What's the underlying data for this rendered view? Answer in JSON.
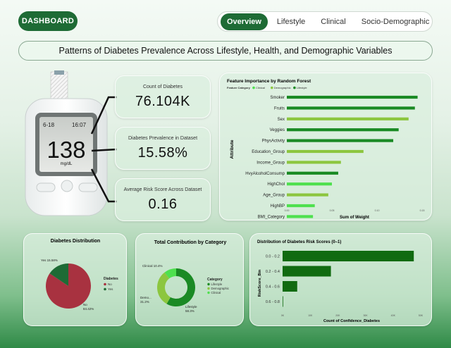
{
  "header": {
    "dashboard_label": "DASHBOARD",
    "tabs": [
      "Overview",
      "Lifestyle",
      "Clinical",
      "Socio-Demographic"
    ],
    "active_tab": "Overview"
  },
  "title": "Patterns of Diabetes Prevalence Across Lifestyle, Health, and  Demographic Variables",
  "meter": {
    "date": "6-18",
    "time": "16:07",
    "reading": "138",
    "unit": "mg/dL"
  },
  "kpis": [
    {
      "label": "Count of Diabetes",
      "value": "76.104K"
    },
    {
      "label": "Diabetes Prevalence in Dataset",
      "value": "15.58%"
    },
    {
      "label": "Average Risk Score Across Dataset",
      "value": "0.16"
    }
  ],
  "colors": {
    "accent": "#1e6b35",
    "lifestyle": "#1a8a24",
    "demographic": "#8cc63f",
    "clinical": "#4ee04e",
    "no": "#a83240",
    "yes": "#1e6b35"
  },
  "chart_data": [
    {
      "type": "bar",
      "orientation": "horizontal",
      "title": "Feature Importance by Random Forest",
      "legend_title": "Feature Category",
      "legend": [
        "Clinical",
        "Demographic",
        "Lifestyle"
      ],
      "legend_colors": [
        "#4ee04e",
        "#8cc63f",
        "#1a8a24"
      ],
      "ylabel": "Attribute",
      "xlabel": "Sum of Weight",
      "xticks": [
        "0.00",
        "0.05",
        "0.10",
        "0.15"
      ],
      "xlim": [
        0,
        0.15
      ],
      "categories": [
        "Smoker",
        "Fruits",
        "Sex",
        "Veggies",
        "PhysActivity",
        "Education_Group",
        "Income_Group",
        "HvyAlcoholConsump",
        "HighChol",
        "Age_Group",
        "HighBP",
        "BMI_Category"
      ],
      "values": [
        0.145,
        0.142,
        0.135,
        0.124,
        0.118,
        0.085,
        0.06,
        0.057,
        0.05,
        0.046,
        0.031,
        0.029
      ],
      "category_types": [
        "Lifestyle",
        "Lifestyle",
        "Demographic",
        "Lifestyle",
        "Lifestyle",
        "Demographic",
        "Demographic",
        "Lifestyle",
        "Clinical",
        "Demographic",
        "Clinical",
        "Clinical"
      ]
    },
    {
      "type": "pie",
      "title": "Diabetes Distribution",
      "legend_title": "Diabetes",
      "labels": [
        "No",
        "Yes"
      ],
      "values": [
        84.42,
        15.58
      ],
      "data_labels": [
        "No\n84.42%",
        "Yes 15.58%"
      ],
      "colors": [
        "#a83240",
        "#1e6b35"
      ]
    },
    {
      "type": "pie",
      "donut": true,
      "title": "Total Contribution by Category",
      "legend_title": "Category",
      "labels": [
        "Lifestyle",
        "Demographic",
        "Clinical"
      ],
      "values": [
        58.3,
        31.2,
        10.4
      ],
      "data_labels": [
        "Lifestyle\n58.3%",
        "Demo...\n31.2%",
        "Clinical 10.4%"
      ],
      "colors": [
        "#1a8a24",
        "#8cc63f",
        "#4ee04e"
      ]
    },
    {
      "type": "bar",
      "orientation": "horizontal",
      "title": "Distribution of Diabetes Risk Scores (0–1)",
      "ylabel": "RiskScore_Bin",
      "xlabel": "Count of Confidence_Diabetes",
      "xticks": [
        "0K",
        "10K",
        "20K",
        "30K",
        "40K",
        "50K"
      ],
      "xlim": [
        0,
        50000
      ],
      "categories": [
        "0.0 - 0.2",
        "0.2 - 0.4",
        "0.4 - 0.6",
        "0.6 - 0.8"
      ],
      "values": [
        47500,
        17500,
        5300,
        200
      ],
      "color": "#116b11"
    }
  ]
}
